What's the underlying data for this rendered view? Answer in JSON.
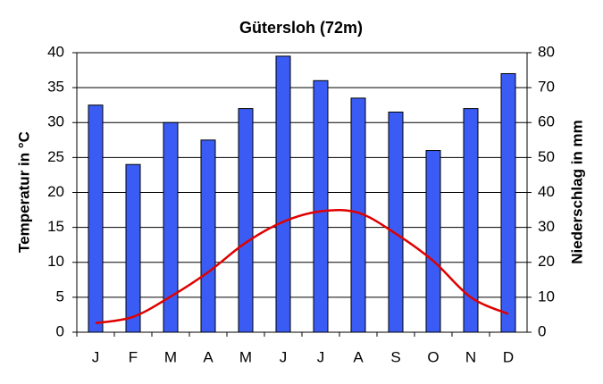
{
  "chart_data": {
    "type": "bar",
    "title": "Gütersloh (72m)",
    "categories": [
      "J",
      "F",
      "M",
      "A",
      "M",
      "J",
      "J",
      "A",
      "S",
      "O",
      "N",
      "D"
    ],
    "ylabel": "Temperatur in °C",
    "y2label": "Niederschlag in mm",
    "ylim": [
      0,
      40
    ],
    "yticks": [
      0,
      5,
      10,
      15,
      20,
      25,
      30,
      35,
      40
    ],
    "y2lim": [
      0,
      80
    ],
    "y2ticks": [
      0,
      10,
      20,
      30,
      40,
      50,
      60,
      70,
      80
    ],
    "grid": true,
    "series": [
      {
        "type": "bar",
        "axis": "y2",
        "color": "#3a5cf5",
        "values": [
          65,
          48,
          60,
          55,
          64,
          79,
          72,
          67,
          63,
          52,
          64,
          74
        ]
      },
      {
        "type": "line",
        "axis": "y",
        "color": "#e00000",
        "values": [
          1.3,
          2.2,
          5.1,
          8.6,
          12.8,
          15.8,
          17.3,
          17.1,
          14.1,
          10.2,
          5.0,
          2.6
        ]
      }
    ]
  }
}
